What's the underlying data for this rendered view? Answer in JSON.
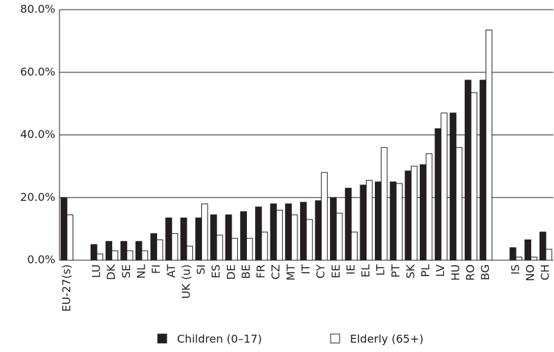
{
  "chart_data": {
    "type": "bar",
    "categories": [
      "EU-27(s)",
      null,
      "LU",
      "DK",
      "SE",
      "NL",
      "FI",
      "AT",
      "UK (u)",
      "SI",
      "ES",
      "DE",
      "BE",
      "FR",
      "CZ",
      "MT",
      "IT",
      "CY",
      "EE",
      "IE",
      "EL",
      "LT",
      "PT",
      "SK",
      "PL",
      "LV",
      "HU",
      "RO",
      "BG",
      null,
      "IS",
      "NO",
      "CH"
    ],
    "series": [
      {
        "name": "Children (0–17)",
        "color": "#231f20",
        "values": [
          20,
          null,
          5,
          6,
          6,
          6,
          8.5,
          13.5,
          13.5,
          13.5,
          14.5,
          14.5,
          15.5,
          17,
          18,
          18,
          18.5,
          19,
          20,
          23,
          24,
          25,
          25,
          28.5,
          30.5,
          42,
          47,
          57.5,
          57.5,
          null,
          4,
          6.5,
          9
        ]
      },
      {
        "name": "Elderly (65+)",
        "color": "#ffffff",
        "values": [
          14.5,
          null,
          2,
          3,
          3,
          3,
          6.5,
          8.5,
          4.5,
          18,
          8,
          7,
          7,
          9,
          16,
          14.5,
          13,
          28,
          15,
          9,
          25.5,
          36,
          24.5,
          30,
          34,
          47,
          36,
          53.5,
          73.5,
          null,
          1,
          1,
          3.5
        ]
      }
    ],
    "ylim": [
      0,
      80
    ],
    "yticks": [
      {
        "value": 0,
        "label": "0.0%"
      },
      {
        "value": 20,
        "label": "20.0%"
      },
      {
        "value": 40,
        "label": "40.0%"
      },
      {
        "value": 60,
        "label": "60.0%"
      },
      {
        "value": 80,
        "label": "80.0%"
      }
    ],
    "grid": true
  }
}
